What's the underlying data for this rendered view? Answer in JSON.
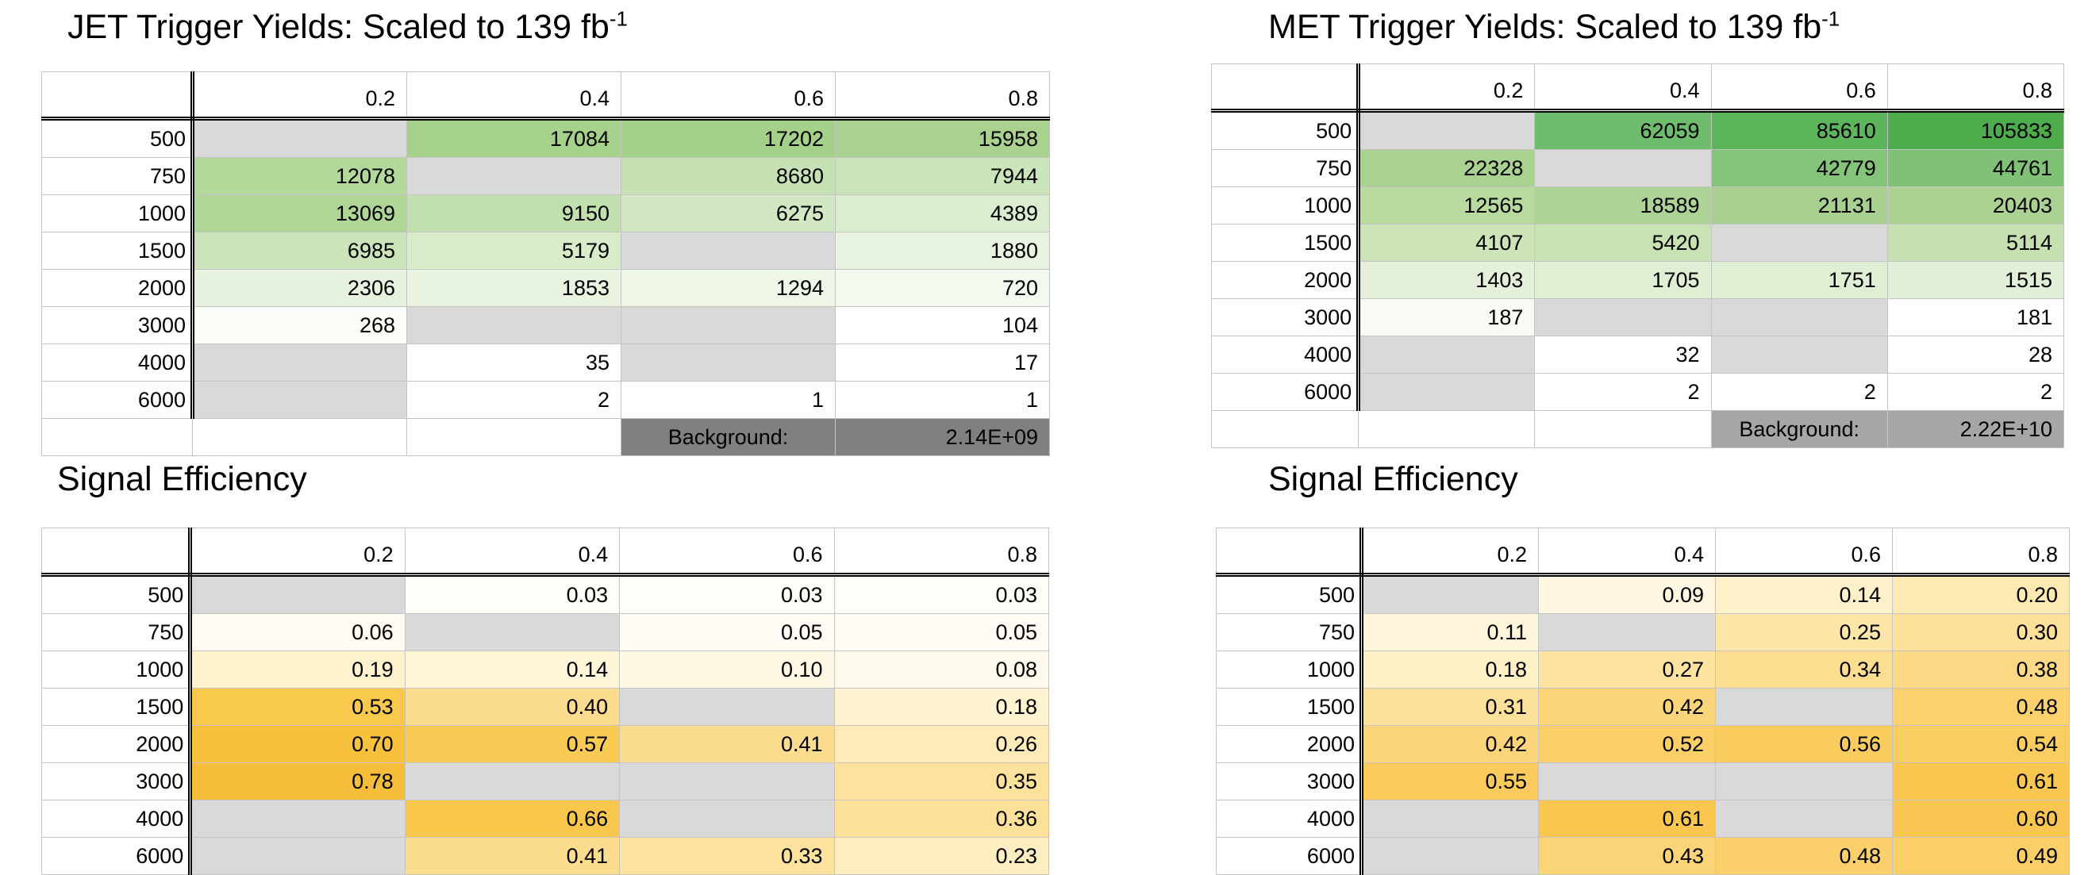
{
  "columns": [
    "0.2",
    "0.4",
    "0.6",
    "0.8"
  ],
  "rows": [
    "500",
    "750",
    "1000",
    "1500",
    "2000",
    "3000",
    "4000",
    "6000"
  ],
  "jet_yields": {
    "title": "JET Trigger Yields: Scaled to 139 fb",
    "title_sup": "-1",
    "cells": [
      [
        "",
        "17084",
        "17202",
        "15958"
      ],
      [
        "12078",
        "",
        "8680",
        "7944"
      ],
      [
        "13069",
        "9150",
        "6275",
        "4389"
      ],
      [
        "6985",
        "5179",
        "",
        "1880"
      ],
      [
        "2306",
        "1853",
        "1294",
        "720"
      ],
      [
        "268",
        "",
        "",
        "104"
      ],
      [
        "",
        "35",
        "",
        "17"
      ],
      [
        "",
        "2",
        "1",
        "1"
      ]
    ],
    "colors": [
      [
        "#d9d9d9",
        "#a6d18a",
        "#a5d089",
        "#a8d28d"
      ],
      [
        "#b2d89a",
        "#d9d9d9",
        "#c6e2b4",
        "#cbe5ba"
      ],
      [
        "#afd696",
        "#c1e0ad",
        "#d1e8c2",
        "#dbedd0"
      ],
      [
        "#cbe4b9",
        "#d8ecca",
        "#d9d9d9",
        "#e8f3e0"
      ],
      [
        "#e6f2dd",
        "#e8f3e0",
        "#edf6e7",
        "#f3f9ef"
      ],
      [
        "#fbfdf9",
        "#d9d9d9",
        "#d9d9d9",
        "#ffffff"
      ],
      [
        "#d9d9d9",
        "#ffffff",
        "#d9d9d9",
        "#ffffff"
      ],
      [
        "#d9d9d9",
        "#ffffff",
        "#ffffff",
        "#ffffff"
      ]
    ],
    "background_label": "Background:",
    "background_value": "2.14E+09",
    "background_color": "#808080"
  },
  "met_yields": {
    "title": "MET Trigger Yields: Scaled to 139 fb",
    "title_sup": "-1",
    "cells": [
      [
        "",
        "62059",
        "85610",
        "105833"
      ],
      [
        "22328",
        "",
        "42779",
        "44761"
      ],
      [
        "12565",
        "18589",
        "21131",
        "20403"
      ],
      [
        "4107",
        "5420",
        "",
        "5114"
      ],
      [
        "1403",
        "1705",
        "1751",
        "1515"
      ],
      [
        "187",
        "",
        "",
        "181"
      ],
      [
        "",
        "32",
        "",
        "28"
      ],
      [
        "",
        "2",
        "2",
        "2"
      ]
    ],
    "colors": [
      [
        "#d9d9d9",
        "#6fbd6c",
        "#5db55b",
        "#4dad4c"
      ],
      [
        "#a9d190",
        "#d9d9d9",
        "#84c479",
        "#80c275"
      ],
      [
        "#b9da9e",
        "#aed396",
        "#a8d091",
        "#abd293"
      ],
      [
        "#cde4b8",
        "#c8e2b3",
        "#d9d9d9",
        "#c6e1b0"
      ],
      [
        "#e4f0d9",
        "#e0eed4",
        "#e0eed4",
        "#e2efd7"
      ],
      [
        "#f8fbf5",
        "#d9d9d9",
        "#d9d9d9",
        "#ffffff"
      ],
      [
        "#d9d9d9",
        "#ffffff",
        "#d9d9d9",
        "#ffffff"
      ],
      [
        "#d9d9d9",
        "#ffffff",
        "#ffffff",
        "#ffffff"
      ]
    ],
    "background_label": "Background:",
    "background_value": "2.22E+10",
    "background_color": "#a6a6a6"
  },
  "jet_efficiency": {
    "title": "Signal Efficiency",
    "cells": [
      [
        "",
        "0.03",
        "0.03",
        "0.03"
      ],
      [
        "0.06",
        "",
        "0.05",
        "0.05"
      ],
      [
        "0.19",
        "0.14",
        "0.10",
        "0.08"
      ],
      [
        "0.53",
        "0.40",
        "",
        "0.18"
      ],
      [
        "0.70",
        "0.57",
        "0.41",
        "0.26"
      ],
      [
        "0.78",
        "",
        "",
        "0.35"
      ],
      [
        "",
        "0.66",
        "",
        "0.36"
      ],
      [
        "",
        "0.41",
        "0.33",
        "0.23"
      ]
    ],
    "colors": [
      [
        "#d9d9d9",
        "#fffdf8",
        "#fffdf8",
        "#fffdf8"
      ],
      [
        "#fffbf2",
        "#d9d9d9",
        "#fffcf5",
        "#fffcf5"
      ],
      [
        "#fff2cc",
        "#fff5d8",
        "#fff8e4",
        "#fffaec"
      ],
      [
        "#f9c94e",
        "#fcdc8e",
        "#d9d9d9",
        "#fff3d0"
      ],
      [
        "#f7c13e",
        "#f9cb55",
        "#fcdc8e",
        "#ffeab8"
      ],
      [
        "#f5bd3a",
        "#d9d9d9",
        "#d9d9d9",
        "#fde29e"
      ],
      [
        "#d9d9d9",
        "#f8c74c",
        "#d9d9d9",
        "#fde19b"
      ],
      [
        "#d9d9d9",
        "#fcdc8e",
        "#fde29d",
        "#feedc0"
      ]
    ]
  },
  "met_efficiency": {
    "title": "Signal Efficiency",
    "cells": [
      [
        "",
        "0.09",
        "0.14",
        "0.20"
      ],
      [
        "0.11",
        "",
        "0.25",
        "0.30"
      ],
      [
        "0.18",
        "0.27",
        "0.34",
        "0.38"
      ],
      [
        "0.31",
        "0.42",
        "",
        "0.48"
      ],
      [
        "0.42",
        "0.52",
        "0.56",
        "0.54"
      ],
      [
        "0.55",
        "",
        "",
        "0.61"
      ],
      [
        "",
        "0.61",
        "",
        "0.60"
      ],
      [
        "",
        "0.43",
        "0.48",
        "0.49"
      ]
    ],
    "colors": [
      [
        "#d9d9d9",
        "#fff7e1",
        "#fff1ca",
        "#fdeab3"
      ],
      [
        "#fff5da",
        "#d9d9d9",
        "#fde6a8",
        "#fde19a"
      ],
      [
        "#fff0c6",
        "#fde3a0",
        "#fddd90",
        "#fcd985"
      ],
      [
        "#fde09a",
        "#fcd57a",
        "#d9d9d9",
        "#fbd16d"
      ],
      [
        "#fcd57a",
        "#fbcf67",
        "#facc5e",
        "#facd62"
      ],
      [
        "#facb5c",
        "#d9d9d9",
        "#d9d9d9",
        "#f9c64f"
      ],
      [
        "#d9d9d9",
        "#f9c64f",
        "#d9d9d9",
        "#f9c751"
      ],
      [
        "#d9d9d9",
        "#fcd478",
        "#fbd06b",
        "#fbcf68"
      ]
    ]
  }
}
